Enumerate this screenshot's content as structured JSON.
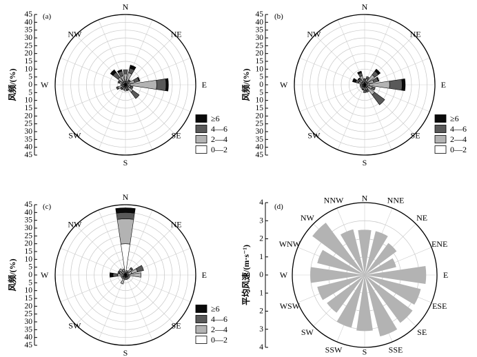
{
  "colors": {
    "c0_2": "#ffffff",
    "c2_4": "#b3b3b3",
    "c4_6": "#595959",
    "c6p": "#0a0a0a",
    "mean": "#b3b3b3"
  },
  "legend": {
    "items": [
      {
        "label": "≥6",
        "color": "#0a0a0a"
      },
      {
        "label": "4—6",
        "color": "#595959"
      },
      {
        "label": "2—4",
        "color": "#b3b3b3"
      },
      {
        "label": "0—2",
        "color": "#ffffff"
      }
    ]
  },
  "chart_data": [
    {
      "panel": "(a)",
      "type": "windrose",
      "ylabel": "风频/(%)",
      "yticks": [
        "45",
        "40",
        "35",
        "30",
        "25",
        "20",
        "15",
        "10",
        "5",
        "0",
        "5",
        "10",
        "15",
        "20",
        "25",
        "30",
        "35",
        "40",
        "45"
      ],
      "rmax": 45,
      "dir_labels": [
        "N",
        "NE",
        "E",
        "SE",
        "S",
        "SW",
        "W",
        "NW"
      ],
      "speed_bins": [
        "0—2",
        "2—4",
        "4—6",
        "≥6"
      ],
      "sectors": [
        {
          "dir": "N",
          "values": [
            2,
            5,
            2.5,
            0
          ]
        },
        {
          "dir": "NNE",
          "values": [
            2,
            6,
            3,
            2
          ]
        },
        {
          "dir": "NE",
          "values": [
            1.5,
            1.5,
            1,
            0
          ]
        },
        {
          "dir": "ENE",
          "values": [
            2,
            4,
            3,
            0.5
          ]
        },
        {
          "dir": "E",
          "values": [
            3,
            17,
            6,
            1.5
          ]
        },
        {
          "dir": "ESE",
          "values": [
            1.5,
            2,
            1.5,
            0
          ]
        },
        {
          "dir": "SE",
          "values": [
            2,
            4,
            5,
            0
          ]
        },
        {
          "dir": "SSE",
          "values": [
            1.5,
            1.5,
            1,
            0
          ]
        },
        {
          "dir": "S",
          "values": [
            2,
            2,
            0,
            0
          ]
        },
        {
          "dir": "SSW",
          "values": [
            1.5,
            2,
            0,
            0
          ]
        },
        {
          "dir": "SW",
          "values": [
            1.5,
            1.5,
            1,
            0
          ]
        },
        {
          "dir": "WSW",
          "values": [
            2,
            3,
            1,
            0
          ]
        },
        {
          "dir": "W",
          "values": [
            1.5,
            1.5,
            0,
            0
          ]
        },
        {
          "dir": "WNW",
          "values": [
            2,
            2,
            1,
            0
          ]
        },
        {
          "dir": "NW",
          "values": [
            2,
            4,
            4,
            2
          ]
        },
        {
          "dir": "NNW",
          "values": [
            2,
            4,
            3,
            1
          ]
        }
      ]
    },
    {
      "panel": "(b)",
      "type": "windrose",
      "ylabel": "风频/(%)",
      "yticks": [
        "45",
        "40",
        "35",
        "30",
        "25",
        "20",
        "15",
        "10",
        "5",
        "0",
        "5",
        "10",
        "15",
        "20",
        "25",
        "30",
        "35",
        "40",
        "45"
      ],
      "rmax": 45,
      "dir_labels": [
        "N",
        "NE",
        "E",
        "SE",
        "S",
        "SW",
        "W",
        "NW"
      ],
      "speed_bins": [
        "0—2",
        "2—4",
        "4—6",
        "≥6"
      ],
      "sectors": [
        {
          "dir": "N",
          "values": [
            1.5,
            1.5,
            1,
            0
          ]
        },
        {
          "dir": "NNE",
          "values": [
            2,
            2,
            1.5,
            0
          ]
        },
        {
          "dir": "NE",
          "values": [
            2,
            6,
            3,
            1.5
          ]
        },
        {
          "dir": "ENE",
          "values": [
            2,
            4,
            3,
            0.5
          ]
        },
        {
          "dir": "E",
          "values": [
            3,
            13,
            8,
            2
          ]
        },
        {
          "dir": "ESE",
          "values": [
            2,
            3,
            2,
            0
          ]
        },
        {
          "dir": "SE",
          "values": [
            2,
            6,
            8,
            0
          ]
        },
        {
          "dir": "SSE",
          "values": [
            1.5,
            2,
            1.5,
            0
          ]
        },
        {
          "dir": "S",
          "values": [
            1.5,
            2,
            1.5,
            0
          ]
        },
        {
          "dir": "SSW",
          "values": [
            1.5,
            1.5,
            0.5,
            0
          ]
        },
        {
          "dir": "SW",
          "values": [
            1.5,
            1.5,
            0,
            0
          ]
        },
        {
          "dir": "WSW",
          "values": [
            1.5,
            1.5,
            0,
            0
          ]
        },
        {
          "dir": "W",
          "values": [
            1.5,
            1.5,
            0,
            0
          ]
        },
        {
          "dir": "WNW",
          "values": [
            2,
            2,
            2,
            2
          ]
        },
        {
          "dir": "NW",
          "values": [
            2,
            2,
            1,
            0.5
          ]
        },
        {
          "dir": "NNW",
          "values": [
            2,
            4,
            2,
            1
          ]
        }
      ]
    },
    {
      "panel": "(c)",
      "type": "windrose",
      "ylabel": "风频/(%)",
      "yticks": [
        "45",
        "40",
        "35",
        "30",
        "25",
        "20",
        "15",
        "10",
        "5",
        "0",
        "5",
        "10",
        "15",
        "20",
        "25",
        "30",
        "35",
        "40",
        "45"
      ],
      "rmax": 45,
      "dir_labels": [
        "N",
        "NE",
        "E",
        "SE",
        "S",
        "SW",
        "W",
        "NW"
      ],
      "speed_bins": [
        "0—2",
        "2—4",
        "4—6",
        "≥6"
      ],
      "sectors": [
        {
          "dir": "N",
          "values": [
            20,
            16,
            4,
            3
          ]
        },
        {
          "dir": "NNE",
          "values": [
            1.5,
            1.5,
            0,
            0
          ]
        },
        {
          "dir": "NE",
          "values": [
            2,
            3,
            1,
            0
          ]
        },
        {
          "dir": "ENE",
          "values": [
            4,
            4,
            4,
            0
          ]
        },
        {
          "dir": "E",
          "values": [
            2,
            8,
            0,
            0
          ]
        },
        {
          "dir": "ESE",
          "values": [
            1.5,
            1.5,
            0,
            0
          ]
        },
        {
          "dir": "SE",
          "values": [
            1.5,
            1.5,
            0,
            0
          ]
        },
        {
          "dir": "SSE",
          "values": [
            1.5,
            1.5,
            0,
            0
          ]
        },
        {
          "dir": "S",
          "values": [
            1.5,
            1.5,
            0,
            0
          ]
        },
        {
          "dir": "SSW",
          "values": [
            2,
            4,
            0,
            0
          ]
        },
        {
          "dir": "SW",
          "values": [
            1.5,
            1.5,
            0,
            0
          ]
        },
        {
          "dir": "WSW",
          "values": [
            1.5,
            1.5,
            0,
            0
          ]
        },
        {
          "dir": "W",
          "values": [
            3,
            2,
            3,
            2
          ]
        },
        {
          "dir": "WNW",
          "values": [
            2,
            2,
            1,
            0
          ]
        },
        {
          "dir": "NW",
          "values": [
            3,
            2,
            0,
            0
          ]
        },
        {
          "dir": "NNW",
          "values": [
            2,
            2,
            0,
            0
          ]
        }
      ]
    },
    {
      "panel": "(d)",
      "type": "windrose_mean",
      "ylabel": "平均风速/(m·s⁻¹)",
      "yticks": [
        "4",
        "3",
        "2",
        "1",
        "0",
        "1",
        "2",
        "3",
        "4"
      ],
      "rmax": 4,
      "dir_labels": [
        "N",
        "NNE",
        "NE",
        "ENE",
        "E",
        "ESE",
        "SE",
        "SSE",
        "S",
        "SSW",
        "SW",
        "WSW",
        "W",
        "WNW",
        "NW",
        "NNW"
      ],
      "values": [
        2.5,
        2.5,
        2.2,
        1.8,
        3.4,
        3.2,
        3.3,
        3.5,
        3.1,
        3.0,
        2.6,
        2.7,
        3.0,
        2.7,
        3.6,
        2.6
      ]
    }
  ]
}
